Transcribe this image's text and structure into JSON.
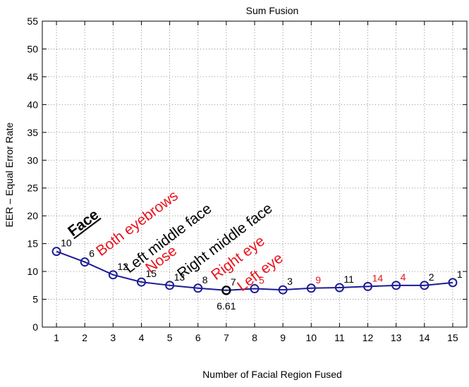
{
  "chart_data": {
    "type": "line",
    "title": "Sum Fusion",
    "xlabel": "Number of Facial Region Fused",
    "ylabel": "EER – Equal Error Rate",
    "xlim": [
      0.5,
      15.5
    ],
    "ylim": [
      0,
      55
    ],
    "xticks": [
      "1",
      "2",
      "3",
      "4",
      "5",
      "6",
      "7",
      "8",
      "9",
      "10",
      "11",
      "12",
      "13",
      "14",
      "15"
    ],
    "yticks": [
      "0",
      "5",
      "10",
      "15",
      "20",
      "25",
      "30",
      "35",
      "40",
      "45",
      "50",
      "55"
    ],
    "grid": true,
    "x": [
      1,
      2,
      3,
      4,
      5,
      6,
      7,
      8,
      9,
      10,
      11,
      12,
      13,
      14,
      15
    ],
    "values": [
      13.6,
      11.7,
      9.4,
      8.1,
      7.5,
      7.0,
      6.61,
      6.9,
      6.7,
      7.0,
      7.1,
      7.3,
      7.5,
      7.5,
      8.0
    ],
    "point_labels": [
      "10",
      "6",
      "12",
      "15",
      "13",
      "8",
      "7",
      "5",
      "3",
      "9",
      "11",
      "14",
      "4",
      "2",
      "1"
    ],
    "highlighted_labels": [
      "5",
      "9",
      "14",
      "4"
    ],
    "min_point": {
      "x": 7,
      "label": "6.61"
    },
    "annotations": [
      {
        "text": "Face",
        "color": "#000000",
        "style": "bold-underline"
      },
      {
        "text": "Both eyebrows",
        "color": "#e8141e"
      },
      {
        "text": "Left middle face",
        "color": "#000000"
      },
      {
        "text": "Nose",
        "color": "#e8141e"
      },
      {
        "text": "Right middle face",
        "color": "#000000"
      },
      {
        "text": "Right eye",
        "color": "#e8141e"
      },
      {
        "text": "Left eye",
        "color": "#e8141e"
      }
    ],
    "colors": {
      "line": "#1c1c96",
      "highlight": "#e8141e",
      "text": "#000000",
      "min_marker": "#000000"
    }
  }
}
